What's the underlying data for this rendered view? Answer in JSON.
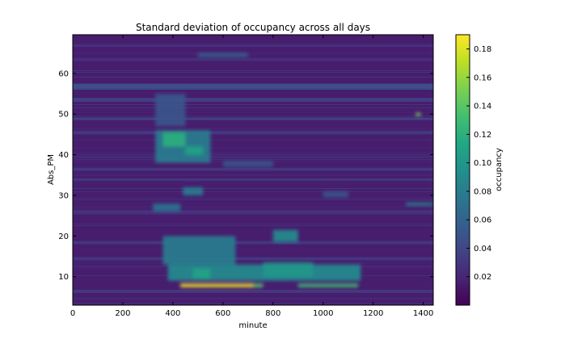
{
  "chart_data": {
    "type": "heatmap",
    "title": "Standard deviation of occupancy across all days",
    "xlabel": "minute",
    "ylabel": "Abs_PM",
    "xlim": [
      0,
      1440
    ],
    "ylim": [
      3,
      69.5
    ],
    "xticks": [
      0,
      200,
      400,
      600,
      800,
      1000,
      1200,
      1400
    ],
    "yticks": [
      10,
      20,
      30,
      40,
      50,
      60
    ],
    "colorbar": {
      "label": "occupancy",
      "colormap": "viridis",
      "range": [
        0,
        0.19
      ],
      "ticks": [
        0.02,
        0.04,
        0.06,
        0.08,
        0.1,
        0.12,
        0.14,
        0.16,
        0.18
      ]
    },
    "base_level": 0.015,
    "background_bands": [
      {
        "y": [
          56.0,
          57.5
        ],
        "value": 0.045
      },
      {
        "y": [
          53.0,
          54.0
        ],
        "value": 0.035
      },
      {
        "y": [
          48.5,
          49.3
        ],
        "value": 0.035
      },
      {
        "y": [
          45.0,
          45.8
        ],
        "value": 0.03
      },
      {
        "y": [
          36.0,
          36.8
        ],
        "value": 0.03
      },
      {
        "y": [
          33.5,
          34.2
        ],
        "value": 0.028
      },
      {
        "y": [
          25.5,
          26.3
        ],
        "value": 0.028
      },
      {
        "y": [
          18.0,
          18.8
        ],
        "value": 0.03
      },
      {
        "y": [
          14.0,
          14.8
        ],
        "value": 0.03
      },
      {
        "y": [
          6.0,
          6.8
        ],
        "value": 0.03
      },
      {
        "y": [
          63.0,
          63.8
        ],
        "value": 0.025
      },
      {
        "y": [
          66.5,
          67.2
        ],
        "value": 0.025
      }
    ],
    "hotspots": [
      {
        "x": [
          430,
          720
        ],
        "y": [
          7.4,
          8.3
        ],
        "value": 0.185
      },
      {
        "x": [
          720,
          760
        ],
        "y": [
          7.4,
          8.3
        ],
        "value": 0.14
      },
      {
        "x": [
          900,
          1140
        ],
        "y": [
          7.4,
          8.3
        ],
        "value": 0.13
      },
      {
        "x": [
          380,
          1150
        ],
        "y": [
          9.0,
          13.0
        ],
        "value": 0.09
      },
      {
        "x": [
          360,
          650
        ],
        "y": [
          13.0,
          20.0
        ],
        "value": 0.08
      },
      {
        "x": [
          480,
          550
        ],
        "y": [
          9.5,
          12.0
        ],
        "value": 0.11
      },
      {
        "x": [
          760,
          960
        ],
        "y": [
          10.0,
          13.5
        ],
        "value": 0.1
      },
      {
        "x": [
          800,
          900
        ],
        "y": [
          18.5,
          21.5
        ],
        "value": 0.09
      },
      {
        "x": [
          320,
          430
        ],
        "y": [
          26.0,
          28.0
        ],
        "value": 0.07
      },
      {
        "x": [
          440,
          520
        ],
        "y": [
          30.0,
          32.0
        ],
        "value": 0.08
      },
      {
        "x": [
          330,
          550
        ],
        "y": [
          38.0,
          46.0
        ],
        "value": 0.08
      },
      {
        "x": [
          360,
          450
        ],
        "y": [
          42.0,
          45.5
        ],
        "value": 0.12
      },
      {
        "x": [
          450,
          520
        ],
        "y": [
          40.0,
          42.0
        ],
        "value": 0.11
      },
      {
        "x": [
          1330,
          1440
        ],
        "y": [
          27.5,
          28.2
        ],
        "value": 0.09
      },
      {
        "x": [
          1370,
          1390
        ],
        "y": [
          49.5,
          50.3
        ],
        "value": 0.15
      },
      {
        "x": [
          1000,
          1100
        ],
        "y": [
          29.5,
          31.0
        ],
        "value": 0.05
      },
      {
        "x": [
          600,
          800
        ],
        "y": [
          37.0,
          38.5
        ],
        "value": 0.05
      },
      {
        "x": [
          500,
          700
        ],
        "y": [
          64.0,
          65.0
        ],
        "value": 0.06
      },
      {
        "x": [
          330,
          450
        ],
        "y": [
          47.0,
          55.0
        ],
        "value": 0.05
      }
    ]
  }
}
